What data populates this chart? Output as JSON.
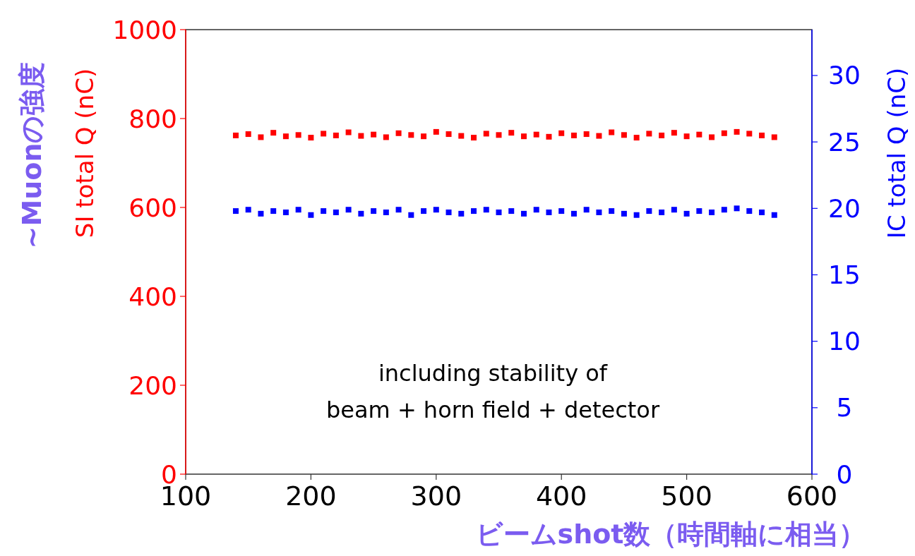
{
  "chart_data": {
    "type": "scatter",
    "xlabel": "ビームshot数（時間軸に相当）",
    "ylabel": "SI total Q (nC)",
    "y2label": "IC total Q (nC)",
    "annotations": [
      "~Muonの強度",
      "including stability of",
      "beam + horn field + detector"
    ],
    "x": [
      140,
      150,
      160,
      170,
      180,
      190,
      200,
      210,
      220,
      230,
      240,
      250,
      260,
      270,
      280,
      290,
      300,
      310,
      320,
      330,
      340,
      350,
      360,
      370,
      380,
      390,
      400,
      410,
      420,
      430,
      440,
      450,
      460,
      470,
      480,
      490,
      500,
      510,
      520,
      530,
      540,
      550,
      560,
      570
    ],
    "series": [
      {
        "name": null,
        "color": "#ff0000",
        "values": [
          762,
          765,
          758,
          768,
          760,
          763,
          757,
          766,
          762,
          769,
          761,
          764,
          758,
          767,
          763,
          760,
          770,
          765,
          761,
          757,
          766,
          763,
          768,
          760,
          764,
          759,
          767,
          762,
          765,
          761,
          769,
          763,
          757,
          766,
          762,
          768,
          760,
          764,
          758,
          767,
          770,
          766,
          762,
          758
        ]
      },
      {
        "name": null,
        "color": "#0000ff",
        "axis": "y2",
        "values": [
          19.8,
          19.9,
          19.6,
          19.8,
          19.7,
          19.9,
          19.5,
          19.8,
          19.7,
          19.9,
          19.6,
          19.8,
          19.7,
          19.9,
          19.5,
          19.8,
          19.9,
          19.7,
          19.6,
          19.8,
          19.9,
          19.7,
          19.8,
          19.6,
          19.9,
          19.7,
          19.8,
          19.6,
          19.9,
          19.7,
          19.8,
          19.6,
          19.5,
          19.8,
          19.7,
          19.9,
          19.6,
          19.8,
          19.7,
          19.9,
          20.0,
          19.8,
          19.7,
          19.5
        ]
      }
    ],
    "xlim": [
      100,
      600
    ],
    "xticks": [
      100,
      200,
      300,
      400,
      500,
      600
    ],
    "ylim": [
      0,
      1000
    ],
    "yticks": [
      0,
      200,
      400,
      600,
      800,
      1000
    ],
    "y2lim": [
      0,
      33.45
    ],
    "y2ticks": [
      0,
      5,
      10,
      15,
      20,
      25,
      30
    ],
    "marker": "square",
    "grid": false
  }
}
